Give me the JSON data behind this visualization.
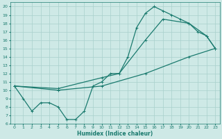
{
  "xlabel": "Humidex (Indice chaleur)",
  "bg_color": "#cee9e6",
  "grid_color": "#a8d0cc",
  "line_color": "#1a7a6e",
  "spine_color": "#1a7a6e",
  "xlim": [
    -0.5,
    23.5
  ],
  "ylim": [
    6,
    20.5
  ],
  "xticks": [
    0,
    1,
    2,
    3,
    4,
    5,
    6,
    7,
    8,
    9,
    10,
    11,
    12,
    13,
    14,
    15,
    16,
    17,
    18,
    19,
    20,
    21,
    22,
    23
  ],
  "yticks": [
    6,
    7,
    8,
    9,
    10,
    11,
    12,
    13,
    14,
    15,
    16,
    17,
    18,
    19,
    20
  ],
  "line1_x": [
    0,
    1,
    2,
    3,
    4,
    5,
    6,
    7,
    8,
    9,
    10,
    11,
    12,
    13,
    14,
    15,
    16,
    17,
    18,
    19,
    20,
    21,
    22,
    23
  ],
  "line1_y": [
    10.5,
    9,
    7.5,
    8.5,
    8.5,
    8,
    6.5,
    6.5,
    7.5,
    10.5,
    11,
    12,
    12,
    14,
    17.5,
    19.2,
    20,
    19.5,
    19,
    18.5,
    18,
    17,
    16.5,
    15
  ],
  "line2_x": [
    0,
    5,
    10,
    15,
    20,
    23
  ],
  "line2_y": [
    10.5,
    10,
    10.5,
    12,
    14,
    15
  ],
  "line3_x": [
    0,
    5,
    10,
    12,
    15,
    17,
    20,
    22,
    23
  ],
  "line3_y": [
    10.5,
    10.2,
    11.5,
    12,
    16,
    18.5,
    18,
    16.5,
    15
  ]
}
